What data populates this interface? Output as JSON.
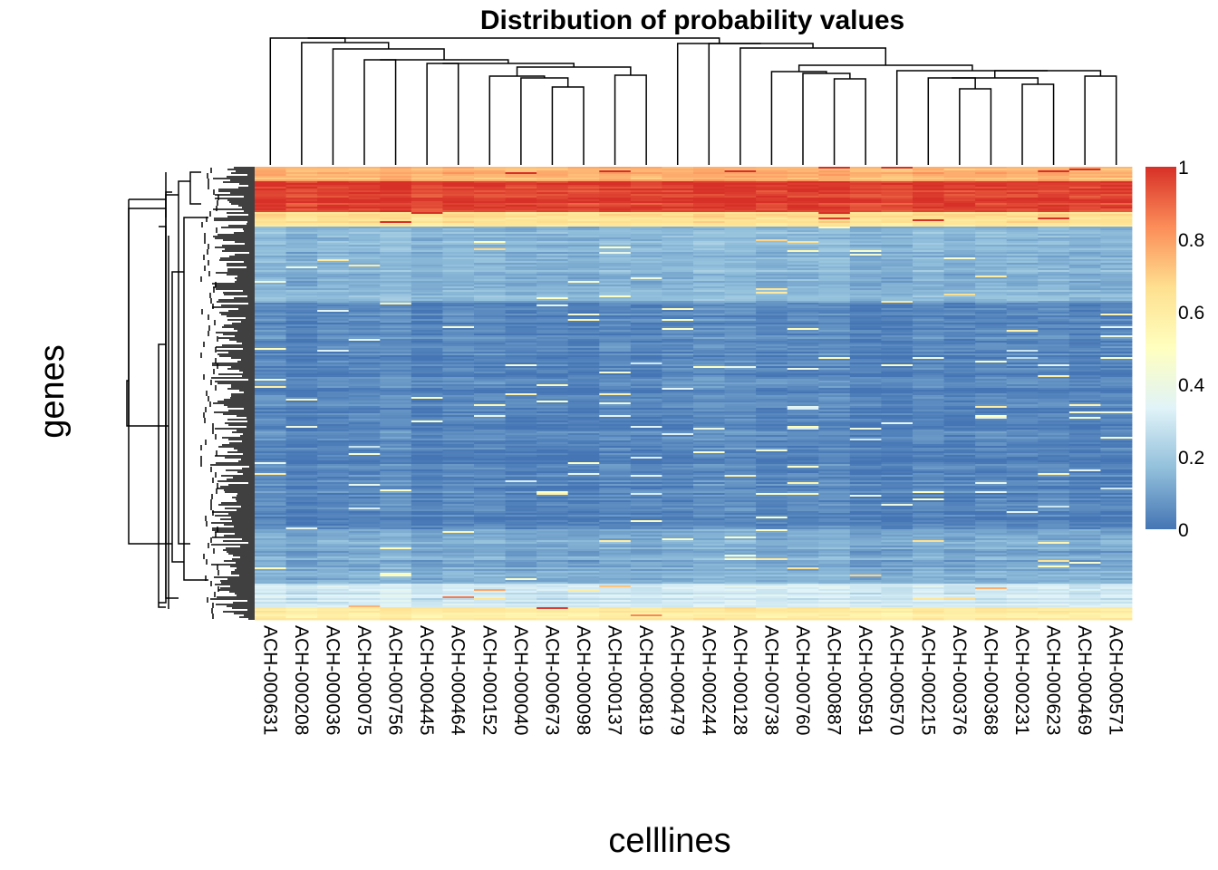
{
  "chart_data": {
    "type": "heatmap",
    "title": "Distribution of probability values",
    "xlabel": "celllines",
    "ylabel": "genes",
    "columns": [
      "ACH-000631",
      "ACH-000208",
      "ACH-000036",
      "ACH-000075",
      "ACH-000756",
      "ACH-000445",
      "ACH-000464",
      "ACH-000152",
      "ACH-000040",
      "ACH-000673",
      "ACH-000098",
      "ACH-000137",
      "ACH-000819",
      "ACH-000479",
      "ACH-000244",
      "ACH-000128",
      "ACH-000738",
      "ACH-000760",
      "ACH-000887",
      "ACH-000591",
      "ACH-000570",
      "ACH-000215",
      "ACH-000376",
      "ACH-000368",
      "ACH-000231",
      "ACH-000623",
      "ACH-000469",
      "ACH-000571"
    ],
    "value_range": [
      0,
      1
    ],
    "colorbar": {
      "ticks": [
        "0",
        "0.2",
        "0.4",
        "0.6",
        "0.8",
        "1"
      ],
      "tick_values": [
        0,
        0.2,
        0.4,
        0.6,
        0.8,
        1
      ],
      "colors": [
        "#4575B4",
        "#91BFDB",
        "#E0F3F8",
        "#FFFFBF",
        "#FEE090",
        "#FC8D59",
        "#D73027"
      ]
    },
    "row_profile": {
      "description_levels": [
        {
          "from": 0.0,
          "to": 0.03,
          "value": 0.75
        },
        {
          "from": 0.03,
          "to": 0.1,
          "value": 0.97
        },
        {
          "from": 0.1,
          "to": 0.13,
          "value": 0.65
        },
        {
          "from": 0.13,
          "to": 0.3,
          "value": 0.15
        },
        {
          "from": 0.3,
          "to": 0.8,
          "value": 0.04
        },
        {
          "from": 0.8,
          "to": 0.92,
          "value": 0.12
        },
        {
          "from": 0.92,
          "to": 0.97,
          "value": 0.3
        },
        {
          "from": 0.97,
          "to": 1.0,
          "value": 0.6
        }
      ]
    },
    "column_dendrogram": true,
    "row_dendrogram": true,
    "legend_position": "right"
  }
}
